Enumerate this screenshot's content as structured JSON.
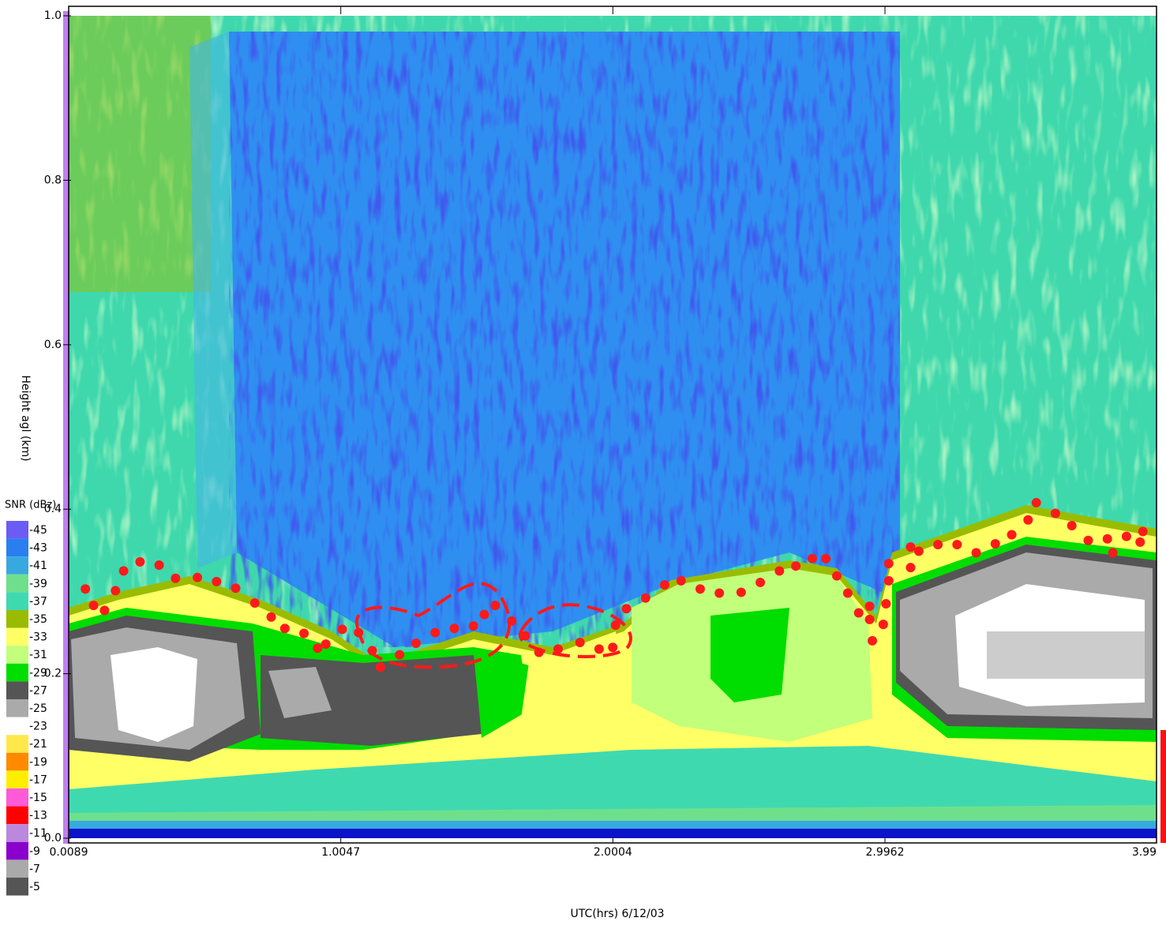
{
  "chart_data": {
    "type": "scatter",
    "xlabel": "UTC(hrs) 6/12/03",
    "ylabel": "Height agl (km)",
    "xlim": [
      0.0089,
      3.99
    ],
    "ylim": [
      0,
      1
    ],
    "xticks": [
      0.0089,
      1.0047,
      2.0004,
      2.9962,
      3.99
    ],
    "yticks": [
      {
        "value": 0,
        "label": "0.0"
      },
      0.2,
      0.4,
      0.6,
      0.8,
      {
        "value": 1,
        "label": "1.0"
      }
    ],
    "colorbar": {
      "title": "SNR (dBz)",
      "levels": [
        -45,
        -43,
        -41,
        -39,
        -37,
        -35,
        -33,
        -31,
        -29,
        -27,
        -25,
        -23,
        -21,
        -19,
        -17,
        -15,
        -13,
        -11,
        -9,
        -7,
        -5
      ],
      "colors": [
        "#6b5cf5",
        "#2a7ff0",
        "#38a8e0",
        "#6ee08c",
        "#3fd9b0",
        "#9abc00",
        "#ffff66",
        "#c2ff7a",
        "#00dd00",
        "#555555",
        "#aaaaaa",
        "#ffffff",
        "#ffe84a",
        "#ff8a00",
        "#ffee00",
        "#ff5ad8",
        "#ff0000",
        "#bb88dd",
        "#8a00cc",
        "#aaaaaa",
        "#555555"
      ]
    },
    "series": [
      {
        "color": "#ff1a1a",
        "x": [
          0.07,
          0.1,
          0.14,
          0.18,
          0.21,
          0.27,
          0.34,
          0.4,
          0.48,
          0.55,
          0.62,
          0.69,
          0.75,
          0.8,
          0.87,
          0.92,
          0.95,
          1.01,
          1.07,
          1.12,
          1.15,
          1.22,
          1.28,
          1.35,
          1.42,
          1.49,
          1.53,
          1.57,
          1.63,
          1.68,
          1.73,
          1.8,
          1.88,
          1.95,
          2.0,
          2.01,
          2.05,
          2.12,
          2.19,
          2.25,
          2.32,
          2.39,
          2.47,
          2.54,
          2.61,
          2.67,
          2.73,
          2.78,
          2.82,
          2.86,
          2.9,
          2.94,
          2.94,
          2.95,
          2.99,
          3.0,
          3.01,
          3.01,
          3.09,
          3.09,
          3.12,
          3.19,
          3.26,
          3.33,
          3.4,
          3.46,
          3.52,
          3.55,
          3.62,
          3.68,
          3.74,
          3.81,
          3.83,
          3.88,
          3.93,
          3.94
        ],
        "values": [
          0.303,
          0.283,
          0.277,
          0.301,
          0.325,
          0.336,
          0.332,
          0.316,
          0.317,
          0.312,
          0.304,
          0.286,
          0.269,
          0.255,
          0.249,
          0.231,
          0.236,
          0.254,
          0.25,
          0.228,
          0.208,
          0.223,
          0.237,
          0.25,
          0.255,
          0.258,
          0.272,
          0.283,
          0.264,
          0.246,
          0.226,
          0.23,
          0.238,
          0.23,
          0.232,
          0.259,
          0.279,
          0.292,
          0.308,
          0.313,
          0.303,
          0.298,
          0.299,
          0.311,
          0.325,
          0.331,
          0.34,
          0.34,
          0.319,
          0.298,
          0.274,
          0.282,
          0.266,
          0.24,
          0.26,
          0.285,
          0.313,
          0.334,
          0.329,
          0.354,
          0.349,
          0.357,
          0.357,
          0.347,
          0.358,
          0.369,
          0.387,
          0.408,
          0.395,
          0.38,
          0.362,
          0.364,
          0.347,
          0.367,
          0.36,
          0.373
        ]
      }
    ]
  }
}
